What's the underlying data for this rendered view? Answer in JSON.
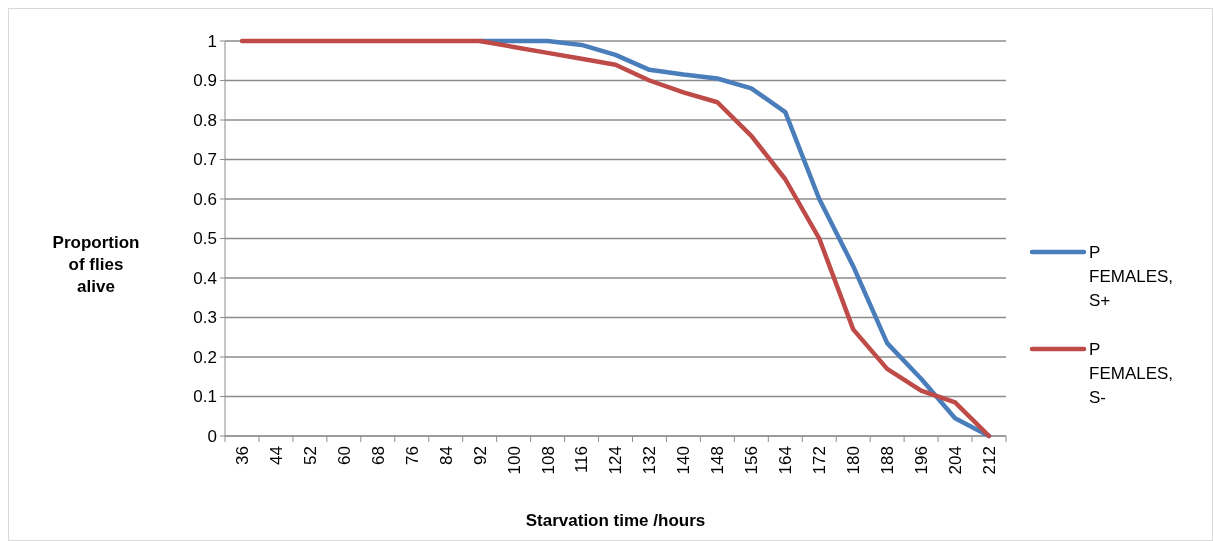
{
  "chart_data": {
    "type": "line",
    "xlabel": "Starvation time /hours",
    "ylabel": "Proportion of flies alive",
    "categories": [
      "36",
      "44",
      "52",
      "60",
      "68",
      "76",
      "84",
      "92",
      "100",
      "108",
      "116",
      "124",
      "132",
      "140",
      "148",
      "156",
      "164",
      "172",
      "180",
      "188",
      "196",
      "204",
      "212"
    ],
    "series": [
      {
        "name": "P FEMALES, S+",
        "color": "#4a7ebb",
        "values": [
          null,
          null,
          null,
          null,
          null,
          null,
          null,
          1,
          1,
          1,
          0.99,
          0.965,
          0.927,
          0.915,
          0.905,
          0.88,
          0.82,
          0.6,
          0.43,
          0.235,
          0.145,
          0.045,
          0
        ]
      },
      {
        "name": "P FEMALES, S-",
        "color": "#be4b48",
        "values": [
          1,
          1,
          1,
          1,
          1,
          1,
          1,
          1,
          0.985,
          0.97,
          0.955,
          0.94,
          0.9,
          0.87,
          0.845,
          0.76,
          0.65,
          0.5,
          0.27,
          0.17,
          0.115,
          0.085,
          0
        ]
      }
    ],
    "ylim": [
      0,
      1
    ],
    "yticks": [
      0,
      0.1,
      0.2,
      0.3,
      0.4,
      0.5,
      0.6,
      0.7,
      0.8,
      0.9,
      1
    ],
    "grid": "y",
    "legend": "right",
    "marker": "none",
    "line_style": "solid"
  }
}
